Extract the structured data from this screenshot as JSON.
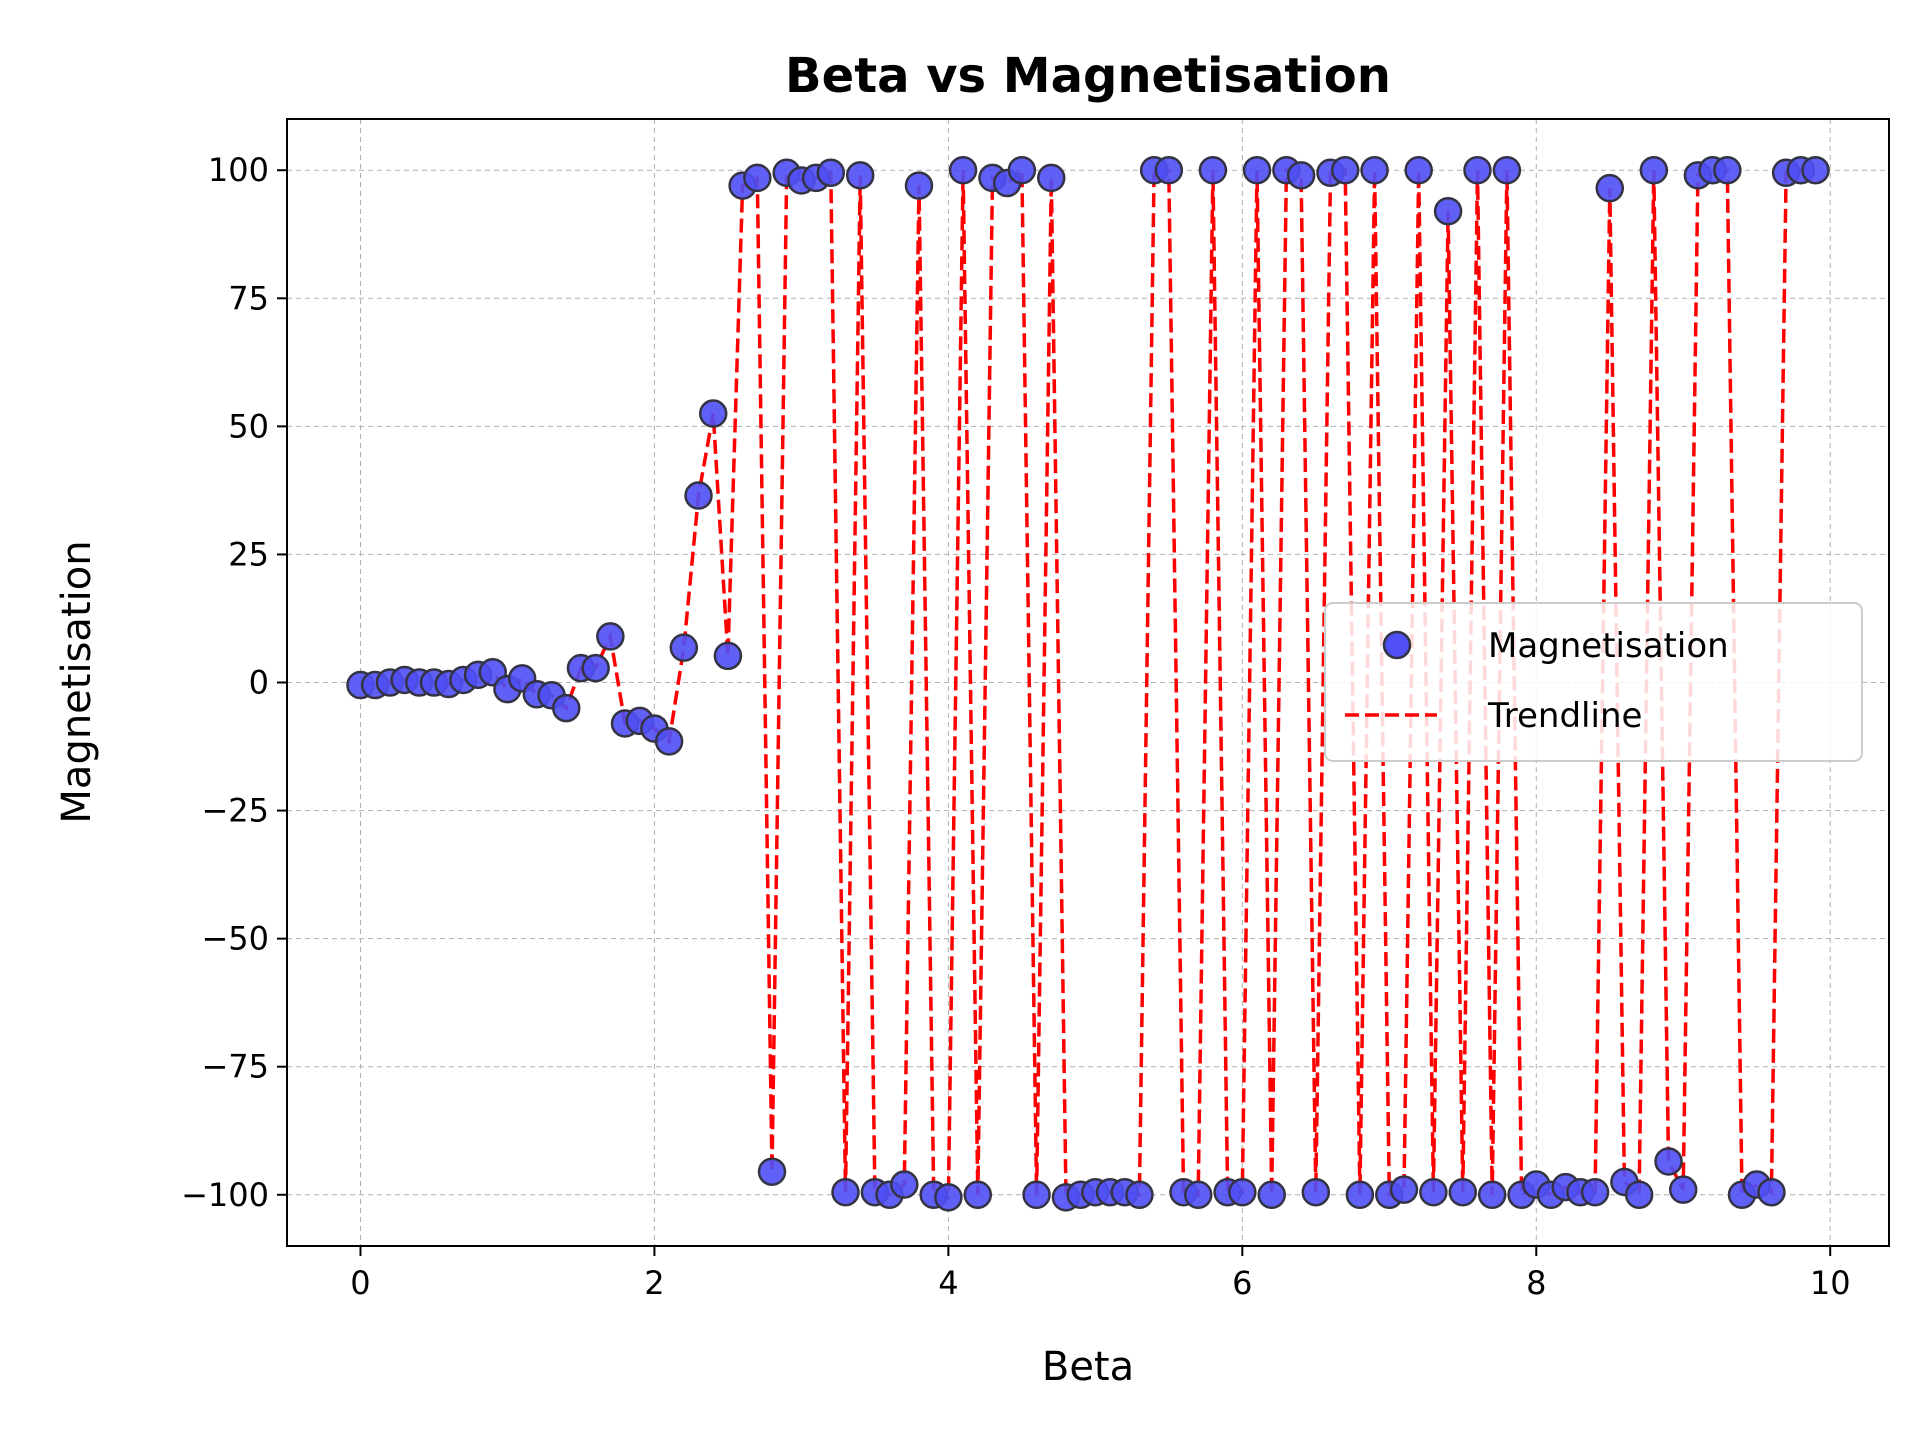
{
  "chart_data": {
    "type": "scatter",
    "title": "Beta vs Magnetisation",
    "xlabel": "Beta",
    "ylabel": "Magnetisation",
    "xlim": [
      -0.5,
      10.4
    ],
    "ylim": [
      -110,
      110
    ],
    "xticks": [
      0,
      2,
      4,
      6,
      8,
      10
    ],
    "yticks": [
      100,
      75,
      50,
      25,
      0,
      -25,
      -50,
      -75,
      -100
    ],
    "ytick_labels": [
      "100",
      "75",
      "50",
      "25",
      "0",
      "−25",
      "−50",
      "−75",
      "−100"
    ],
    "grid": true,
    "legend_position": "center-right",
    "x": [
      0.0,
      0.1,
      0.2,
      0.3,
      0.4,
      0.5,
      0.6,
      0.7,
      0.8,
      0.9,
      1.0,
      1.1,
      1.2,
      1.3,
      1.4,
      1.5,
      1.6,
      1.7,
      1.8,
      1.9,
      2.0,
      2.1,
      2.2,
      2.3,
      2.4,
      2.5,
      2.6,
      2.7,
      2.8,
      2.9,
      3.0,
      3.1,
      3.2,
      3.3,
      3.4,
      3.5,
      3.6,
      3.7,
      3.8,
      3.9,
      4.0,
      4.1,
      4.2,
      4.3,
      4.4,
      4.5,
      4.6,
      4.7,
      4.8,
      4.9,
      5.0,
      5.1,
      5.2,
      5.3,
      5.4,
      5.5,
      5.6,
      5.7,
      5.8,
      5.9,
      6.0,
      6.1,
      6.2,
      6.3,
      6.4,
      6.5,
      6.6,
      6.7,
      6.8,
      6.9,
      7.0,
      7.1,
      7.2,
      7.3,
      7.4,
      7.5,
      7.6,
      7.7,
      7.8,
      7.9,
      8.0,
      8.1,
      8.2,
      8.3,
      8.4,
      8.5,
      8.6,
      8.7,
      8.8,
      8.9,
      9.0,
      9.1,
      9.2,
      9.3,
      9.4,
      9.5,
      9.6,
      9.7,
      9.8,
      9.9
    ],
    "series": [
      {
        "name": "Magnetisation",
        "style": "scatter",
        "color": "#4f4ff5",
        "edge_color": "#333344",
        "values": [
          -0.5,
          -0.5,
          0,
          0.5,
          0,
          0,
          -0.3,
          0.5,
          1.5,
          2,
          -1.3,
          0.8,
          -2.3,
          -2.5,
          -5,
          2.8,
          2.8,
          9,
          -8,
          -7.5,
          -9,
          -11.5,
          6.8,
          36.5,
          52.5,
          5.2,
          97,
          98.5,
          -95.5,
          99.5,
          98,
          98.5,
          99.5,
          -99.5,
          99,
          -99.5,
          -100,
          -98,
          97,
          -100,
          -100.5,
          100,
          -100,
          98.5,
          97.5,
          100,
          -100,
          98.5,
          -100.5,
          -100,
          -99.5,
          -99.5,
          -99.5,
          -100,
          100,
          100,
          -99.5,
          -100,
          100,
          -99.5,
          -99.5,
          100,
          -100,
          100,
          99,
          -99.5,
          99.5,
          100,
          -100,
          100,
          -100,
          -99,
          100,
          -99.5,
          92,
          -99.5,
          100,
          -100,
          100,
          -100,
          -98,
          -100,
          -98.5,
          -99.5,
          -99.5,
          96.5,
          -97.5,
          -100,
          100,
          -93.5,
          -99,
          99,
          100,
          100,
          -100,
          -98,
          -99.5,
          99.5,
          100,
          100
        ]
      },
      {
        "name": "Trendline",
        "style": "line",
        "color": "#ff0000",
        "dash": "dashed",
        "values": [
          -0.5,
          -0.5,
          0,
          0.5,
          0,
          0,
          -0.3,
          0.5,
          1.5,
          2,
          -1.3,
          0.8,
          -2.3,
          -2.5,
          -5,
          2.8,
          2.8,
          9,
          -8,
          -7.5,
          -9,
          -11.5,
          6.8,
          36.5,
          52.5,
          5.2,
          97,
          98.5,
          -95.5,
          99.5,
          98,
          98.5,
          99.5,
          -99.5,
          99,
          -99.5,
          -100,
          -98,
          97,
          -100,
          -100.5,
          100,
          -100,
          98.5,
          97.5,
          100,
          -100,
          98.5,
          -100.5,
          -100,
          -99.5,
          -99.5,
          -99.5,
          -100,
          100,
          100,
          -99.5,
          -100,
          100,
          -99.5,
          -99.5,
          100,
          -100,
          100,
          99,
          -99.5,
          99.5,
          100,
          -100,
          100,
          -100,
          -99,
          100,
          -99.5,
          92,
          -99.5,
          100,
          -100,
          100,
          -100,
          -98,
          -100,
          -98.5,
          -99.5,
          -99.5,
          96.5,
          -97.5,
          -100,
          100,
          -93.5,
          -99,
          99,
          100,
          100,
          -100,
          -98,
          -99.5,
          99.5,
          100,
          100
        ]
      }
    ]
  }
}
